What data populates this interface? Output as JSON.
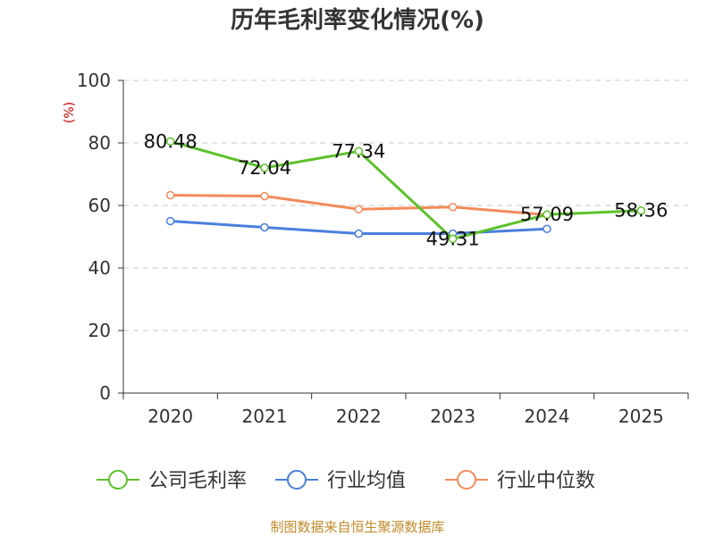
{
  "chart_data": {
    "type": "line",
    "title": "历年毛利率变化情况(%)",
    "unit_label": "(%)",
    "categories": [
      "2020",
      "2021",
      "2022",
      "2023",
      "2024",
      "2025"
    ],
    "ylim": [
      0,
      100
    ],
    "yticks": [
      0,
      20,
      40,
      60,
      80,
      100
    ],
    "grid": true,
    "legend_position": "bottom",
    "series": [
      {
        "name": "公司毛利率",
        "color": "#5cc12b",
        "values": [
          80.48,
          72.04,
          77.34,
          49.31,
          57.09,
          58.36
        ],
        "labels": [
          "80.48",
          "72.04",
          "77.34",
          "49.31",
          "57.09",
          "58.36"
        ]
      },
      {
        "name": "行业均值",
        "color": "#4a7fdc",
        "values": [
          55.0,
          53.0,
          51.0,
          51.0,
          52.5,
          null
        ],
        "labels": []
      },
      {
        "name": "行业中位数",
        "color": "#f38b5a",
        "values": [
          63.3,
          63.0,
          58.8,
          59.5,
          57.0,
          null
        ],
        "labels": []
      }
    ],
    "footer": "制图数据来自恒生聚源数据库"
  }
}
